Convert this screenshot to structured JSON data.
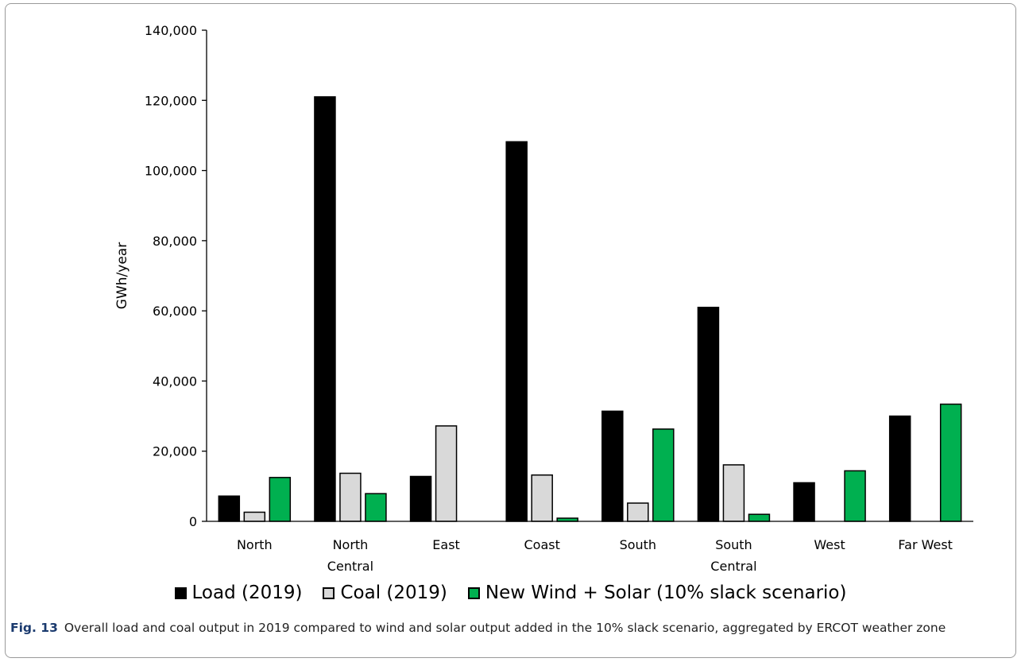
{
  "chart_data": {
    "type": "bar",
    "categories": [
      [
        "North"
      ],
      [
        "North",
        "Central"
      ],
      [
        "East"
      ],
      [
        "Coast"
      ],
      [
        "South"
      ],
      [
        "South",
        "Central"
      ],
      [
        "West"
      ],
      [
        "Far West"
      ]
    ],
    "series": [
      {
        "name": "Load (2019)",
        "color": "#000000",
        "border": "#000000",
        "values": [
          7200,
          121000,
          12800,
          108200,
          31400,
          61000,
          11000,
          30000
        ]
      },
      {
        "name": "Coal (2019)",
        "color": "#d9d9d9",
        "border": "#000000",
        "values": [
          2600,
          13700,
          27200,
          13200,
          5200,
          16100,
          0,
          0
        ]
      },
      {
        "name": "New Wind + Solar (10% slack scenario)",
        "color": "#00b050",
        "border": "#000000",
        "values": [
          12500,
          7900,
          0,
          900,
          26300,
          2000,
          14400,
          33400
        ]
      }
    ],
    "ylabel": "GWh/year",
    "ylim": [
      0,
      140000
    ],
    "yticks": [
      "0",
      "20,000",
      "40,000",
      "60,000",
      "80,000",
      "100,000",
      "120,000",
      "140,000"
    ],
    "ytick_values": [
      0,
      20000,
      40000,
      60000,
      80000,
      100000,
      120000,
      140000
    ],
    "legend_position": "bottom",
    "grid": false
  },
  "caption": {
    "label": "Fig. 13",
    "text": "Overall load and coal output in 2019 compared to wind and solar output added in the 10% slack scenario, aggregated by ERCOT weather zone"
  }
}
